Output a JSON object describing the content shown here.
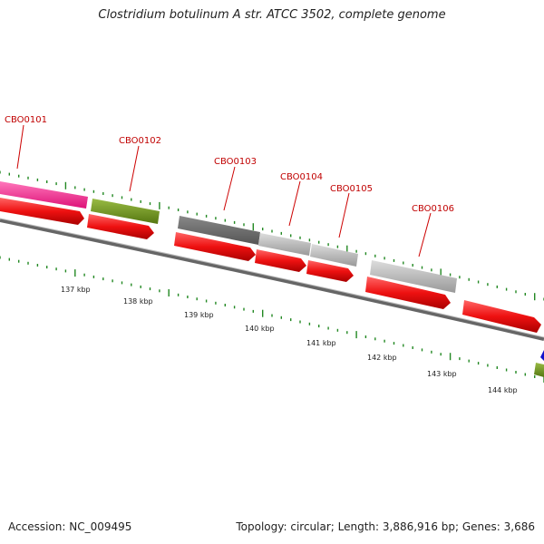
{
  "title": "Clostridium botulinum A str. ATCC 3502, complete genome",
  "accession": "Accession: NC_009495",
  "summary": "Topology: circular; Length: 3,886,916 bp; Genes: 3,686",
  "colors": {
    "gene_label": "#c00000",
    "cds": "#ee1111",
    "magenta": "#ee2288",
    "olive": "#779922",
    "dark_gray": "#666666",
    "light_gray": "#bbbbbb",
    "backbone": "#777777",
    "tick_green": "#228822",
    "blue": "#1111cc"
  },
  "gene_labels": [
    {
      "id": "g101",
      "text": "CBO0101"
    },
    {
      "id": "g102",
      "text": "CBO0102"
    },
    {
      "id": "g103",
      "text": "CBO0103"
    },
    {
      "id": "g104",
      "text": "CBO0104"
    },
    {
      "id": "g105",
      "text": "CBO0105"
    },
    {
      "id": "g106",
      "text": "CBO0106"
    }
  ],
  "kbp_labels": [
    "137 kbp",
    "138 kbp",
    "139 kbp",
    "140 kbp",
    "141 kbp",
    "142 kbp",
    "143 kbp",
    "144 kbp"
  ]
}
